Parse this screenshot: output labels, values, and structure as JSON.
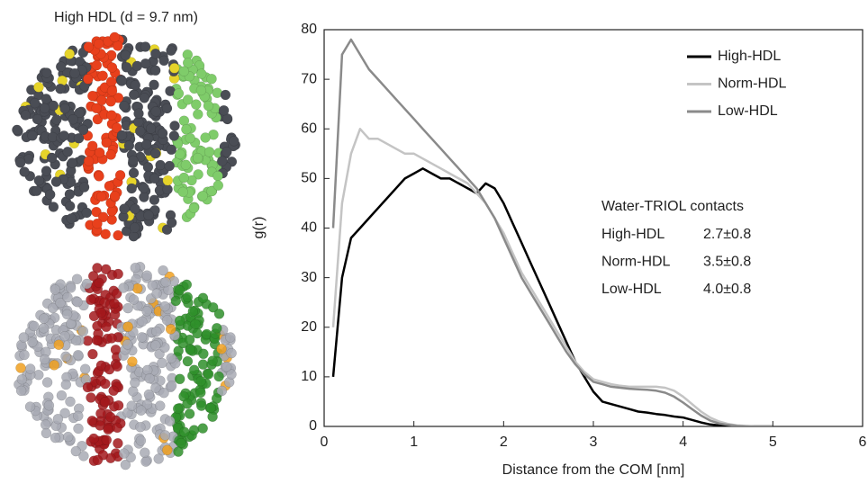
{
  "left_panel": {
    "title": "High HDL (d = 9.7 nm)"
  },
  "chart_data": {
    "type": "line",
    "x_label": "Distance from the COM [nm]",
    "y_label": "g(r)",
    "x": [
      0.1,
      0.2,
      0.3,
      0.4,
      0.5,
      0.6,
      0.7,
      0.8,
      0.9,
      1.0,
      1.1,
      1.2,
      1.3,
      1.4,
      1.5,
      1.6,
      1.7,
      1.8,
      1.9,
      2.0,
      2.1,
      2.2,
      2.3,
      2.4,
      2.5,
      2.6,
      2.7,
      2.8,
      2.9,
      3.0,
      3.1,
      3.2,
      3.3,
      3.4,
      3.5,
      3.6,
      3.7,
      3.8,
      3.9,
      4.0,
      4.1,
      4.2,
      4.3,
      4.4,
      4.5,
      4.6,
      4.7,
      4.8,
      4.9,
      5.0
    ],
    "series": [
      {
        "name": "High-HDL",
        "color": "#000000",
        "values": [
          10,
          30,
          38,
          40,
          42,
          44,
          46,
          48,
          50,
          51,
          52,
          51,
          50,
          50,
          49,
          48,
          47,
          49,
          48,
          45,
          41,
          37,
          33,
          29,
          25,
          21,
          17,
          13,
          10,
          7,
          5,
          4.5,
          4,
          3.5,
          3,
          2.8,
          2.5,
          2.3,
          2,
          1.8,
          1.3,
          0.8,
          0.4,
          0.2,
          0.1,
          0,
          0,
          0,
          0,
          0
        ]
      },
      {
        "name": "Norm-HDL",
        "color": "#c4c4c4",
        "values": [
          20,
          45,
          55,
          60,
          58,
          58,
          57,
          56,
          55,
          55,
          54,
          53,
          52,
          51,
          50,
          49,
          47,
          45,
          42,
          39,
          35,
          31,
          28,
          25,
          22,
          19,
          16,
          13,
          11,
          9.5,
          9,
          8.5,
          8.2,
          8,
          8,
          8,
          8,
          7.8,
          7.2,
          6,
          4.5,
          3,
          1.8,
          1,
          0.5,
          0.2,
          0.1,
          0,
          0,
          0
        ]
      },
      {
        "name": "Low-HDL",
        "color": "#8a8a8a",
        "values": [
          40,
          75,
          78,
          75,
          72,
          70,
          68,
          66,
          64,
          62,
          60,
          58,
          56,
          54,
          52,
          50,
          48,
          45,
          42,
          38,
          34,
          30,
          27,
          24,
          21,
          18,
          15,
          12.5,
          10.5,
          9,
          8.5,
          8,
          7.8,
          7.6,
          7.5,
          7.4,
          7.2,
          6.8,
          6,
          4.8,
          3.5,
          2.2,
          1.2,
          0.6,
          0.3,
          0.1,
          0,
          0,
          0,
          0
        ]
      }
    ],
    "xlim": [
      0,
      6
    ],
    "xticks": [
      0,
      1,
      2,
      3,
      4,
      5,
      6
    ],
    "ylim": [
      0,
      80
    ],
    "yticks": [
      0,
      10,
      20,
      30,
      40,
      50,
      60,
      70,
      80
    ],
    "legend": "upper right",
    "annotation": {
      "title": "Water-TRIOL contacts",
      "rows": [
        [
          "High-HDL",
          "2.7±0.8"
        ],
        [
          "Norm-HDL",
          "3.5±0.8"
        ],
        [
          "Low-HDL",
          "4.0±0.8"
        ]
      ]
    }
  }
}
